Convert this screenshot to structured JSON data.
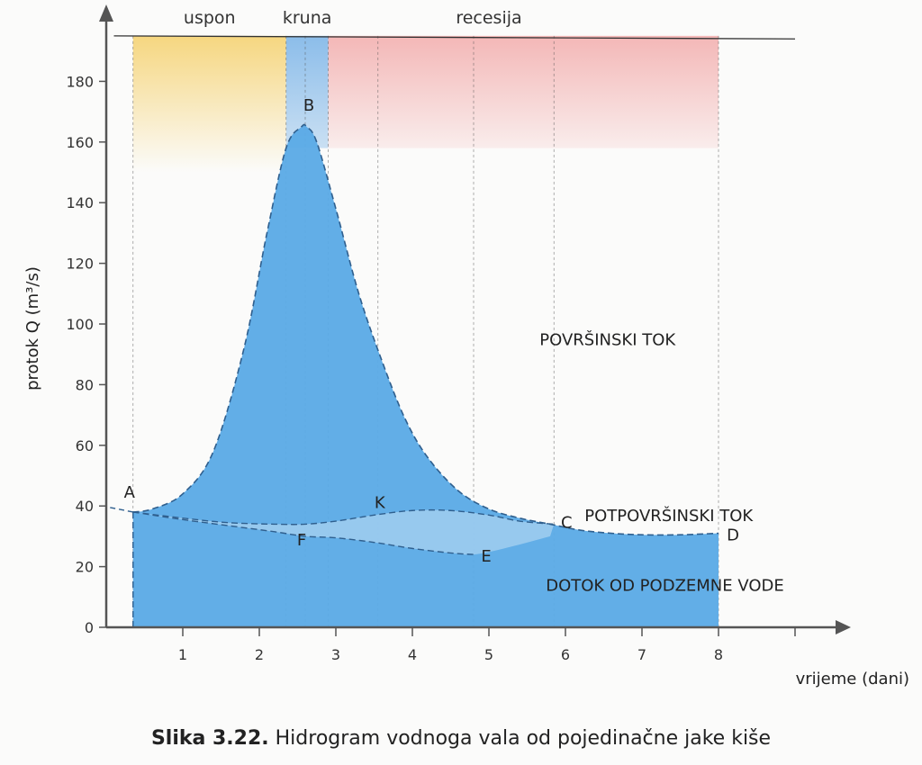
{
  "chart_data": {
    "type": "area",
    "title": "",
    "xlabel": "vrijeme (dani)",
    "ylabel": "protok  Q (m³/s)",
    "xlim": [
      0,
      9
    ],
    "ylim": [
      0,
      190
    ],
    "xticks": [
      "1",
      "2",
      "3",
      "4",
      "5",
      "6",
      "7",
      "8"
    ],
    "yticks": [
      "0",
      "20",
      "40",
      "60",
      "80",
      "100",
      "120",
      "140",
      "160",
      "180"
    ],
    "phases": [
      {
        "name": "uspon",
        "from": 0.35,
        "to": 2.35,
        "color": "#f7d36a"
      },
      {
        "name": "kruna",
        "from": 2.35,
        "to": 2.9,
        "color": "#7fb6e8"
      },
      {
        "name": "recesija",
        "from": 2.9,
        "to": 8.0,
        "color": "#f0a0a0"
      }
    ],
    "series": [
      {
        "name": "POVRŠINSKI TOK",
        "x": [
          0.35,
          0.6,
          1.0,
          1.4,
          1.8,
          2.1,
          2.35,
          2.55,
          2.62,
          2.75,
          3.0,
          3.3,
          3.6,
          3.9,
          4.2,
          4.6,
          5.0,
          5.4,
          5.8,
          6.2,
          6.6,
          7.0,
          7.5,
          8.0
        ],
        "y": [
          38,
          39,
          44,
          58,
          92,
          130,
          158,
          165,
          165,
          160,
          138,
          110,
          88,
          69,
          56,
          45,
          39,
          36,
          34,
          32,
          31,
          30.5,
          30.5,
          31
        ]
      },
      {
        "name": "POTPOVRŠINSKI TOK",
        "x": [
          0.35,
          1.0,
          1.6,
          2.2,
          2.6,
          3.0,
          3.5,
          4.0,
          4.5,
          5.0,
          5.4,
          5.85
        ],
        "y": [
          38,
          36,
          34.5,
          34,
          34,
          35,
          37,
          38.5,
          38.5,
          37,
          35,
          34
        ]
      },
      {
        "name": "DOTOK OD PODZEMNE VODE",
        "x": [
          0.35,
          1.0,
          1.6,
          2.2,
          2.6,
          3.0,
          3.5,
          4.0,
          4.5,
          4.8,
          5.2,
          5.8,
          6.4,
          7.0,
          7.5,
          8.0
        ],
        "y": [
          38,
          35.5,
          33.5,
          31.5,
          30,
          29.5,
          28,
          26,
          24.5,
          24,
          26,
          30,
          31,
          31,
          31,
          31
        ]
      }
    ],
    "points": [
      {
        "label": "A",
        "x": 0.35,
        "y": 38
      },
      {
        "label": "B",
        "x": 2.6,
        "y": 165
      },
      {
        "label": "F",
        "x": 2.6,
        "y": 30
      },
      {
        "label": "K",
        "x": 3.55,
        "y": 37
      },
      {
        "label": "E",
        "x": 4.8,
        "y": 24
      },
      {
        "label": "C",
        "x": 5.85,
        "y": 34
      },
      {
        "label": "D",
        "x": 8.0,
        "y": 31
      }
    ],
    "region_labels": [
      "POVRŠINSKI TOK",
      "POTPOVRŠINSKI TOK",
      "DOTOK OD PODZEMNE VODE"
    ],
    "vertical_guides": [
      0.35,
      2.35,
      2.6,
      2.9,
      3.55,
      4.8,
      5.85,
      8.0
    ],
    "colors": {
      "fill": "#5aaae6",
      "fill_light": "#a9d2f0",
      "axis": "#555555"
    }
  },
  "caption": {
    "label": "Slika 3.22.",
    "text": " Hidrogram vodnoga vala od pojedinačne jake kiše"
  }
}
